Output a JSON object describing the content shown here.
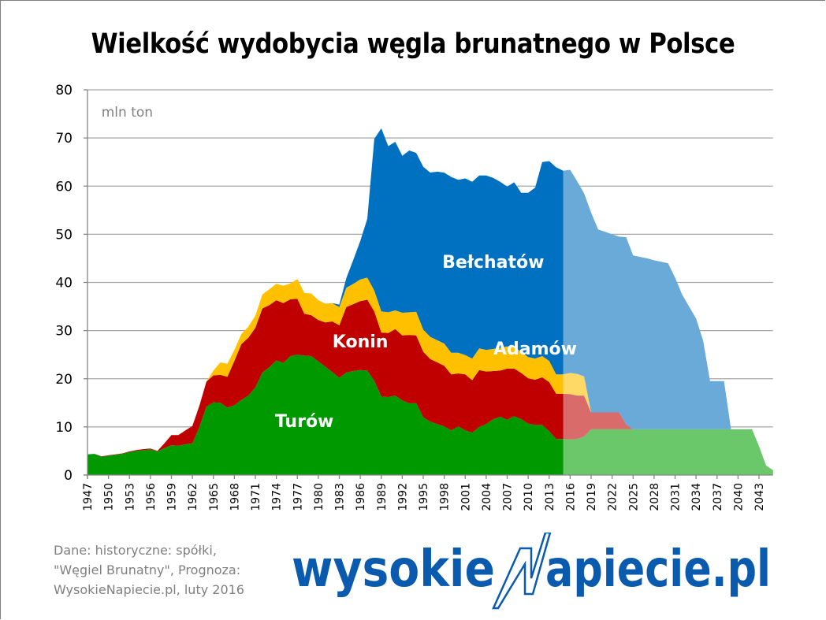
{
  "title": "Wielkość wydobycia węgla brunatnego w Polsce",
  "unit_label": "mln ton",
  "source_lines": [
    "Dane: historyczne: spółki,",
    "\"Węgiel Brunatny\",  Prognoza:",
    "WysokieNapiecie.pl, luty 2016"
  ],
  "logo": {
    "left": "wysokie",
    "right": "apiecie.pl",
    "bolt_color": "#0a5aad"
  },
  "colors": {
    "turow": "#009900",
    "konin": "#c00000",
    "adamow": "#ffc000",
    "belchatow": "#0070c0",
    "turow_forecast": "#6ac76a",
    "konin_forecast": "#d96b6b",
    "adamow_forecast": "#ffd966",
    "belchatow_forecast": "#6aaad9",
    "grid": "#a6a6a6",
    "axis": "#868686"
  },
  "chart_data": {
    "type": "area",
    "stacked": true,
    "title": "Wielkość wydobycia węgla brunatnego w Polsce",
    "xlabel": "",
    "ylabel": "mln ton",
    "ylim": [
      0,
      80
    ],
    "yticks": [
      0,
      10,
      20,
      30,
      40,
      50,
      60,
      70,
      80
    ],
    "grid": true,
    "legend": "inline labels",
    "forecast_start": 2015,
    "x_tick_labels": [
      "1947",
      "1950",
      "1953",
      "1956",
      "1959",
      "1962",
      "1965",
      "1968",
      "1971",
      "1974",
      "1977",
      "1980",
      "1983",
      "1986",
      "1989",
      "1992",
      "1995",
      "1998",
      "2001",
      "2004",
      "2007",
      "2010",
      "2013",
      "2016",
      "2019",
      "2022",
      "2025",
      "2028",
      "2031",
      "2034",
      "2037",
      "2040",
      "2043"
    ],
    "x": [
      1947,
      1948,
      1949,
      1950,
      1951,
      1952,
      1953,
      1954,
      1955,
      1956,
      1957,
      1958,
      1959,
      1960,
      1961,
      1962,
      1963,
      1964,
      1965,
      1966,
      1967,
      1968,
      1969,
      1970,
      1971,
      1972,
      1973,
      1974,
      1975,
      1976,
      1977,
      1978,
      1979,
      1980,
      1981,
      1982,
      1983,
      1984,
      1985,
      1986,
      1987,
      1988,
      1989,
      1990,
      1991,
      1992,
      1993,
      1994,
      1995,
      1996,
      1997,
      1998,
      1999,
      2000,
      2001,
      2002,
      2003,
      2004,
      2005,
      2006,
      2007,
      2008,
      2009,
      2010,
      2011,
      2012,
      2013,
      2014,
      2015,
      2016,
      2017,
      2018,
      2019,
      2020,
      2021,
      2022,
      2023,
      2024,
      2025,
      2026,
      2027,
      2028,
      2029,
      2030,
      2031,
      2032,
      2033,
      2034,
      2035,
      2036,
      2037,
      2038,
      2039,
      2040,
      2041,
      2042,
      2043,
      2044,
      2045
    ],
    "series": [
      {
        "name": "Turów",
        "values": [
          4.3,
          4.4,
          3.8,
          4.0,
          4.2,
          4.4,
          4.8,
          5.0,
          5.2,
          5.3,
          4.9,
          5.6,
          6.2,
          6.1,
          6.4,
          6.6,
          10.0,
          14.2,
          15.1,
          15.0,
          14.0,
          14.5,
          15.6,
          16.5,
          18.2,
          21.3,
          22.4,
          23.8,
          23.3,
          24.7,
          25.0,
          24.8,
          24.7,
          23.6,
          22.5,
          21.4,
          20.2,
          21.3,
          21.6,
          21.8,
          21.7,
          19.6,
          16.3,
          16.2,
          16.5,
          15.5,
          14.9,
          14.9,
          12.0,
          11.1,
          10.6,
          10.1,
          9.3,
          10.1,
          9.3,
          8.8,
          10.0,
          10.6,
          11.6,
          12.1,
          11.5,
          12.2,
          11.6,
          10.7,
          10.4,
          10.4,
          9.1,
          7.5,
          7.5,
          7.4,
          7.5,
          8.0,
          9.5,
          9.5,
          9.5,
          9.5,
          9.5,
          9.5,
          9.5,
          9.5,
          9.5,
          9.5,
          9.5,
          9.5,
          9.5,
          9.5,
          9.5,
          9.5,
          9.5,
          9.5,
          9.5,
          9.5,
          9.5,
          9.5,
          9.5,
          9.5,
          6.0,
          2.0,
          1.0
        ]
      },
      {
        "name": "Konin",
        "values": [
          0,
          0,
          0.1,
          0.1,
          0.1,
          0.1,
          0.1,
          0.2,
          0.2,
          0.2,
          0.1,
          1.0,
          2.1,
          2.2,
          2.9,
          3.6,
          4.4,
          5.2,
          5.6,
          5.8,
          6.4,
          9.2,
          11.6,
          12.0,
          12.4,
          13.3,
          12.9,
          12.5,
          12.4,
          11.8,
          11.6,
          8.7,
          8.5,
          8.6,
          9.2,
          10.5,
          10.9,
          13.6,
          13.9,
          14.3,
          14.7,
          14.4,
          13.3,
          13.3,
          13.8,
          13.5,
          14.2,
          14.1,
          13.6,
          13.0,
          12.8,
          12.6,
          11.6,
          11.0,
          11.6,
          10.9,
          11.8,
          10.9,
          10.0,
          9.6,
          10.6,
          9.9,
          9.6,
          9.4,
          9.4,
          9.9,
          10.2,
          9.4,
          9.4,
          9.4,
          9.0,
          8.5,
          3.5,
          3.5,
          3.5,
          3.5,
          3.5,
          1.0,
          0,
          0,
          0,
          0,
          0,
          0,
          0,
          0,
          0,
          0,
          0,
          0,
          0,
          0,
          0,
          0,
          0,
          0,
          0,
          0,
          0
        ]
      },
      {
        "name": "Adamów",
        "values": [
          0,
          0,
          0,
          0,
          0,
          0,
          0,
          0,
          0,
          0,
          0,
          0,
          0,
          0,
          0,
          0,
          0,
          0,
          1.0,
          2.6,
          2.7,
          2.3,
          2.1,
          2.3,
          2.5,
          2.9,
          3.3,
          3.4,
          3.6,
          3.3,
          4.1,
          4.3,
          4.5,
          4.1,
          3.9,
          3.8,
          3.8,
          4.0,
          4.2,
          4.5,
          4.6,
          4.3,
          4.4,
          4.3,
          3.9,
          4.7,
          4.7,
          4.9,
          4.6,
          4.6,
          4.6,
          4.6,
          4.5,
          4.3,
          4.0,
          4.5,
          4.5,
          4.5,
          4.6,
          4.7,
          4.6,
          4.5,
          4.4,
          4.4,
          4.4,
          4.4,
          4.4,
          4.0,
          4.0,
          4.4,
          4.5,
          4.0,
          0,
          0,
          0,
          0,
          0,
          0,
          0,
          0,
          0,
          0,
          0,
          0,
          0,
          0,
          0,
          0,
          0,
          0,
          0,
          0,
          0,
          0,
          0,
          0,
          0,
          0,
          0
        ]
      },
      {
        "name": "Bełchatów",
        "values": [
          0,
          0,
          0,
          0,
          0,
          0,
          0,
          0,
          0,
          0,
          0,
          0,
          0,
          0,
          0,
          0,
          0,
          0,
          0,
          0,
          0,
          0,
          0,
          0,
          0,
          0,
          0,
          0,
          0,
          0,
          0,
          0,
          0,
          0,
          0,
          0,
          0.5,
          2.0,
          5.0,
          8.0,
          12.2,
          31.5,
          38.0,
          34.5,
          35.0,
          32.6,
          33.6,
          33.0,
          33.8,
          34.1,
          35.0,
          35.5,
          36.5,
          35.9,
          36.7,
          36.7,
          35.9,
          36.2,
          35.5,
          34.5,
          33.2,
          34.2,
          33.0,
          34.1,
          35.5,
          40.3,
          41.5,
          43.0,
          42.3,
          42.2,
          40.0,
          38.0,
          41.5,
          38.0,
          37.5,
          37.0,
          36.5,
          38.9,
          36.1,
          35.8,
          35.5,
          35.1,
          34.8,
          34.5,
          31.5,
          28.0,
          25.5,
          23.0,
          18.5,
          10.0,
          10.0,
          10.0,
          0,
          0,
          0,
          0,
          0,
          0,
          0
        ]
      }
    ],
    "annotations": [
      {
        "text": "mln ton",
        "x": 1949,
        "y": 75.5
      },
      {
        "text": "Turów",
        "x": 1978,
        "y": 10
      },
      {
        "text": "Konin",
        "x": 1986,
        "y": 26.5
      },
      {
        "text": "Adamów",
        "x": 2011,
        "y": 25
      },
      {
        "text": "Bełchatów",
        "x": 2005,
        "y": 43
      }
    ]
  }
}
